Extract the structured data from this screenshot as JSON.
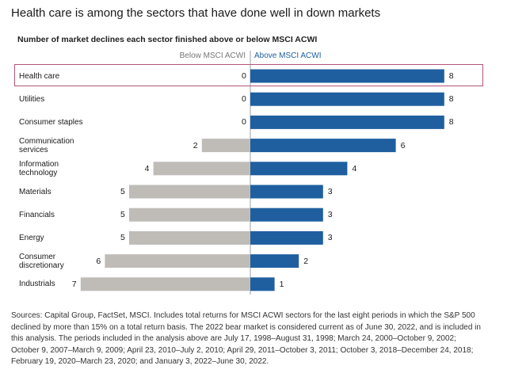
{
  "title": "Health care is among the sectors that have done well in down markets",
  "chart_data": {
    "type": "bar",
    "subtitle": "Number of market declines each sector finished above or below MSCI ACWI",
    "categories": [
      "Health care",
      "Utilities",
      "Consumer staples",
      "Communication\nservices",
      "Information\ntechnology",
      "Materials",
      "Financials",
      "Energy",
      "Consumer\ndiscretionary",
      "Industrials"
    ],
    "series": [
      {
        "name": "Below MSCI ACWI",
        "values": [
          0,
          0,
          0,
          2,
          4,
          5,
          5,
          5,
          6,
          7
        ],
        "color": "#bfbcb8"
      },
      {
        "name": "Above MSCI ACWI",
        "values": [
          8,
          8,
          8,
          6,
          4,
          3,
          3,
          3,
          2,
          1
        ],
        "color": "#1f5fa0"
      }
    ],
    "xlim": [
      0,
      8
    ],
    "highlighted_category": "Health care",
    "highlight_color": "#b3547a",
    "grid": false,
    "legend_position": "top-center"
  },
  "sources": "Sources: Capital Group, FactSet, MSCI. Includes total returns for MSCI ACWI sectors for the last eight periods in which the S&P 500 declined by more than 15% on a total return basis. The 2022 bear market is considered current as of June 30, 2022, and is included in this analysis. The periods included in the analysis above are July 17, 1998–August 31, 1998; March 24, 2000–October 9, 2002; October 9, 2007–March 9, 2009; April 23, 2010–July 2, 2010; April 29, 2011–October 3, 2011; October 3, 2018–December 24, 2018; February 19, 2020–March 23, 2020; and January 3, 2022–June 30, 2022."
}
